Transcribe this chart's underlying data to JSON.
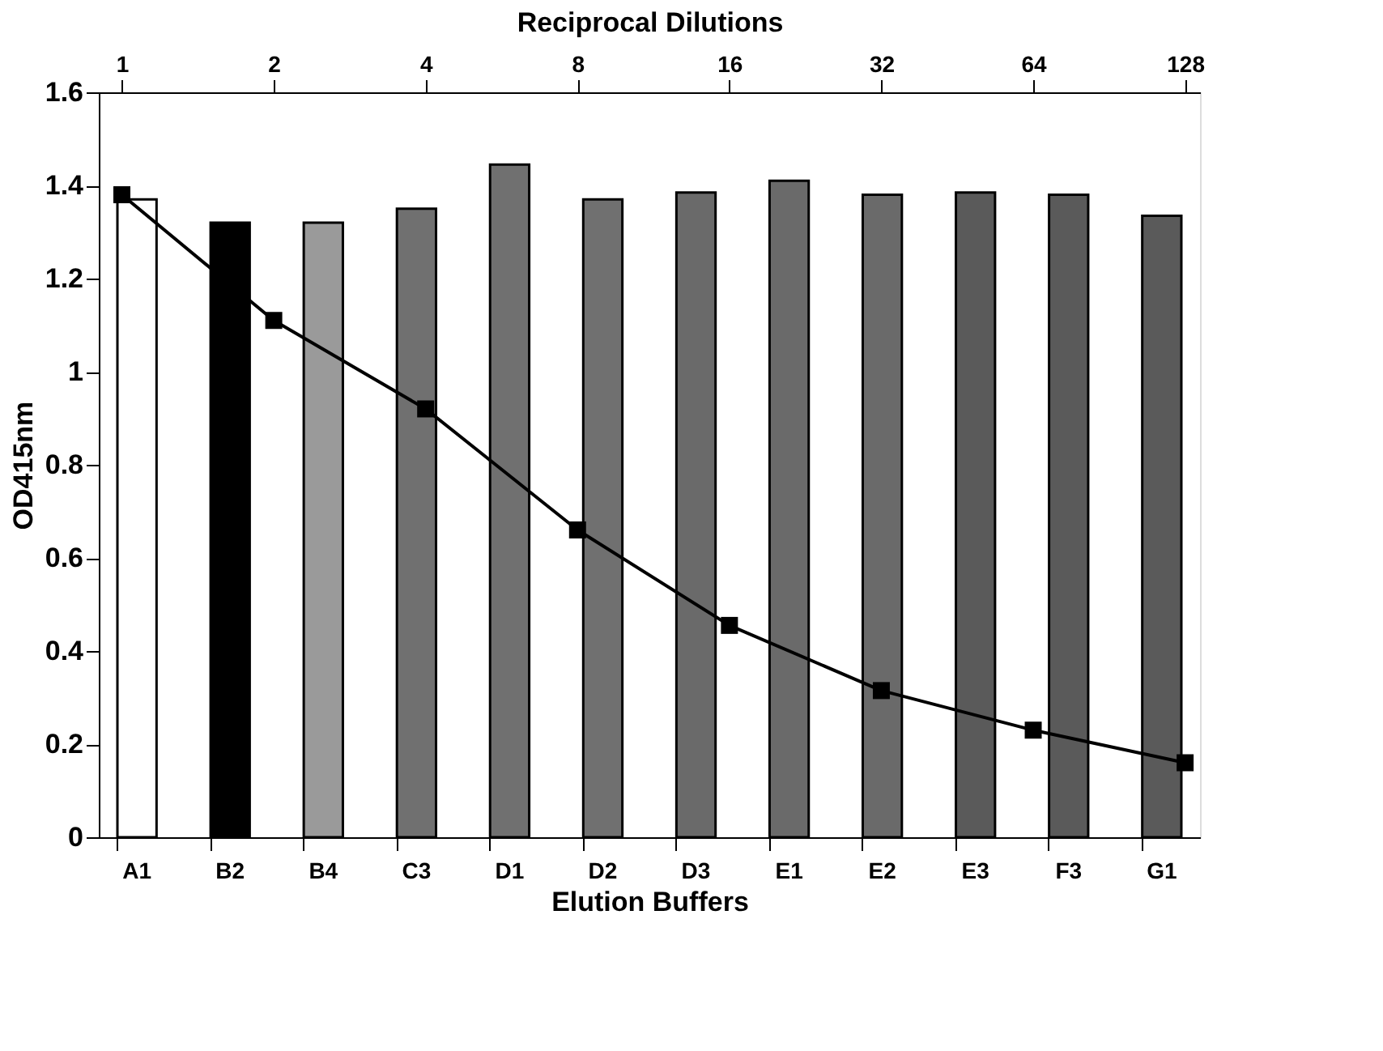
{
  "chart_data": {
    "type": "bar",
    "xlabel": "Elution Buffers",
    "ylabel": "OD415nm",
    "x2label": "Reciprocal Dilutions",
    "categories": [
      "A1",
      "B2",
      "B4",
      "C3",
      "D1",
      "D2",
      "D3",
      "E1",
      "E2",
      "E3",
      "F3",
      "G1"
    ],
    "ylim": [
      0,
      1.6
    ],
    "yticks": [
      0,
      0.2,
      0.4,
      0.6,
      0.8,
      1,
      1.2,
      1.4,
      1.6
    ],
    "x2lim": [
      0.9,
      137
    ],
    "x2ticks": [
      1,
      2,
      4,
      8,
      16,
      32,
      64,
      128
    ],
    "log": "x2",
    "grid": false,
    "series": [
      {
        "values": [
          1.37,
          1.32,
          1.32,
          1.35,
          1.445,
          1.37,
          1.385,
          1.41,
          1.38,
          1.385,
          1.38,
          1.335
        ],
        "colors": [
          "#ffffff",
          "#000000",
          "#9a9a9a",
          "#707070",
          "#707070",
          "#707070",
          "#6a6a6a",
          "#6a6a6a",
          "#6a6a6a",
          "#5a5a5a",
          "#5a5a5a",
          "#5a5a5a"
        ]
      },
      {
        "type": "line",
        "axis": "x2",
        "color": "#000000",
        "marker": "square",
        "line_style": "solid",
        "x": [
          1,
          2,
          4,
          8,
          16,
          32,
          64,
          128
        ],
        "values": [
          1.38,
          1.11,
          0.92,
          0.66,
          0.455,
          0.315,
          0.23,
          0.16
        ]
      }
    ]
  }
}
